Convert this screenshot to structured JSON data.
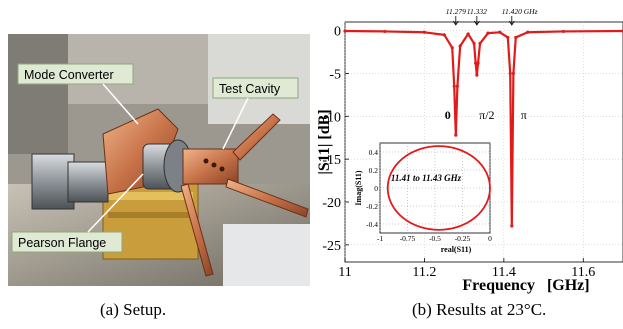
{
  "setup_photo": {
    "labels": {
      "mode_converter": "Mode Converter",
      "test_cavity": "Test Cavity",
      "pearson_flange": "Pearson Flange"
    }
  },
  "captions": {
    "a": "(a) Setup.",
    "b": "(b) Results at 23°C."
  },
  "chart_data": {
    "type": "line",
    "xlabel": "Frequency   [GHz]",
    "ylabel": "|S11|  [dB]",
    "xlim": [
      11.0,
      11.7
    ],
    "ylim": [
      -27,
      1
    ],
    "xticks": [
      "11",
      "11.2",
      "11.4",
      "11.6"
    ],
    "yticks": [
      "0",
      "-5",
      "-10",
      "-15",
      "-20",
      "-25"
    ],
    "line_color": "#e11b1b",
    "resonances": [
      {
        "freq": 11.279,
        "min_db": -12.2,
        "mode": "0",
        "top_label": "11.279"
      },
      {
        "freq": 11.332,
        "min_db": -5.2,
        "mode": "π/2",
        "top_label": "11.332"
      },
      {
        "freq": 11.42,
        "min_db": -22.8,
        "mode": "π",
        "top_label": "11.420 GHz"
      }
    ],
    "series": [
      {
        "x": [
          11.0,
          11.1,
          11.2,
          11.25,
          11.27,
          11.275,
          11.279,
          11.283,
          11.29,
          11.31,
          11.325,
          11.329,
          11.332,
          11.335,
          11.34,
          11.36,
          11.39,
          11.41,
          11.416,
          11.42,
          11.424,
          11.43,
          11.46,
          11.55,
          11.7
        ],
        "y": [
          -0.05,
          -0.1,
          -0.2,
          -0.5,
          -2.0,
          -6.5,
          -12.2,
          -6.5,
          -1.8,
          -0.4,
          -1.5,
          -3.8,
          -5.2,
          -3.8,
          -1.5,
          -0.3,
          -0.2,
          -0.8,
          -5.0,
          -22.8,
          -5.0,
          -0.8,
          -0.2,
          -0.1,
          -0.05
        ]
      }
    ],
    "inset": {
      "type": "scatter",
      "title": "11.41 to 11.43 GHz",
      "xlabel": "real(S11)",
      "ylabel": "Imag(S11)",
      "xlim": [
        -1,
        0
      ],
      "ylim": [
        -0.5,
        0.5
      ],
      "xticks": [
        "-1",
        "-0.75",
        "-0.5",
        "-0.25",
        "0"
      ],
      "yticks": [
        "0.4",
        "0.2",
        "0",
        "-0.2",
        "-0.4"
      ],
      "circle": {
        "center_real": -0.465,
        "center_imag": 0.0,
        "radius": 0.465
      }
    }
  }
}
